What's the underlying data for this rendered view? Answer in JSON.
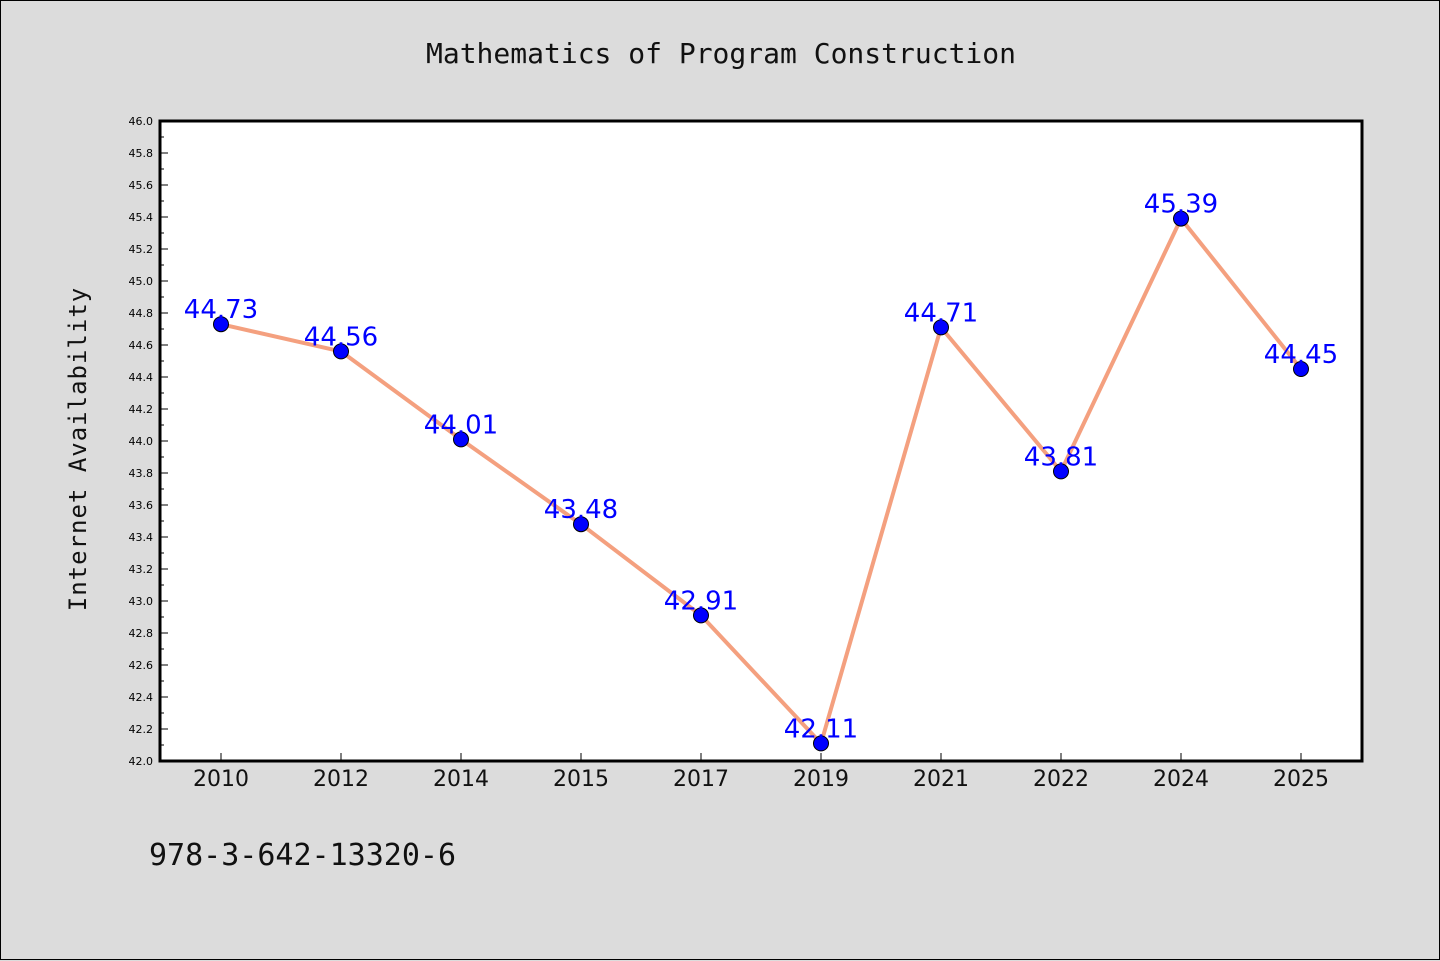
{
  "chart_data": {
    "type": "line",
    "title": "Mathematics of Program Construction",
    "xlabel": "",
    "ylabel": "Internet Availability",
    "categories": [
      "2010",
      "2012",
      "2014",
      "2015",
      "2017",
      "2019",
      "2021",
      "2022",
      "2024",
      "2025"
    ],
    "series": [
      {
        "values": [
          44.73,
          44.56,
          44.01,
          43.48,
          42.91,
          42.11,
          44.71,
          43.81,
          45.39,
          44.45
        ],
        "labels": [
          "44.73",
          "44.56",
          "44.01",
          "43.48",
          "42.91",
          "42.11",
          "44.71",
          "43.81",
          "45.39",
          "44.45"
        ],
        "line_color": "#f4a07f",
        "marker_color": "#0000ff"
      }
    ],
    "ylim": [
      42.0,
      46.0
    ],
    "yticks": [
      "42.0",
      "42.2",
      "42.4",
      "42.6",
      "42.8",
      "43.0",
      "43.2",
      "43.4",
      "43.6",
      "43.8",
      "44.0",
      "44.2",
      "44.4",
      "44.6",
      "44.8",
      "45.0",
      "45.2",
      "45.4",
      "45.6",
      "45.8",
      "46.0"
    ],
    "grid": false,
    "legend": "none"
  },
  "footer": {
    "isbn": "978-3-642-13320-6"
  },
  "colors": {
    "background": "#dcdcdc",
    "plot_background": "#ffffff",
    "line": "#f4a07f",
    "marker": "#0000ff",
    "data_label": "#0000ff"
  }
}
